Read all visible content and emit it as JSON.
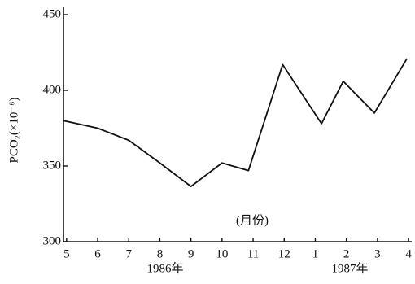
{
  "chart_data": {
    "type": "line",
    "y_label": "PCO₂(×10⁻⁶)",
    "annotations": [
      "(月份)",
      "1986年",
      "1987年"
    ],
    "x": [
      4.9,
      6,
      7,
      8,
      9,
      10,
      10.85,
      11.95,
      13.2,
      13.9,
      14.9,
      15.95
    ],
    "series": [
      {
        "color": "#111111",
        "values": [
          380,
          375,
          367,
          352,
          336.5,
          352,
          347,
          417,
          378,
          406,
          385,
          421
        ]
      }
    ],
    "xlim": [
      4.9,
      16.05
    ],
    "xticks": [
      5,
      6,
      7,
      8,
      9,
      10,
      11,
      12,
      {
        "value": 13,
        "label": "1"
      },
      {
        "value": 14,
        "label": "2"
      },
      {
        "value": 15,
        "label": "3"
      },
      {
        "value": 16,
        "label": "4"
      }
    ],
    "ylim": [
      300,
      450
    ],
    "yticks": [
      300,
      350,
      400,
      450
    ]
  }
}
